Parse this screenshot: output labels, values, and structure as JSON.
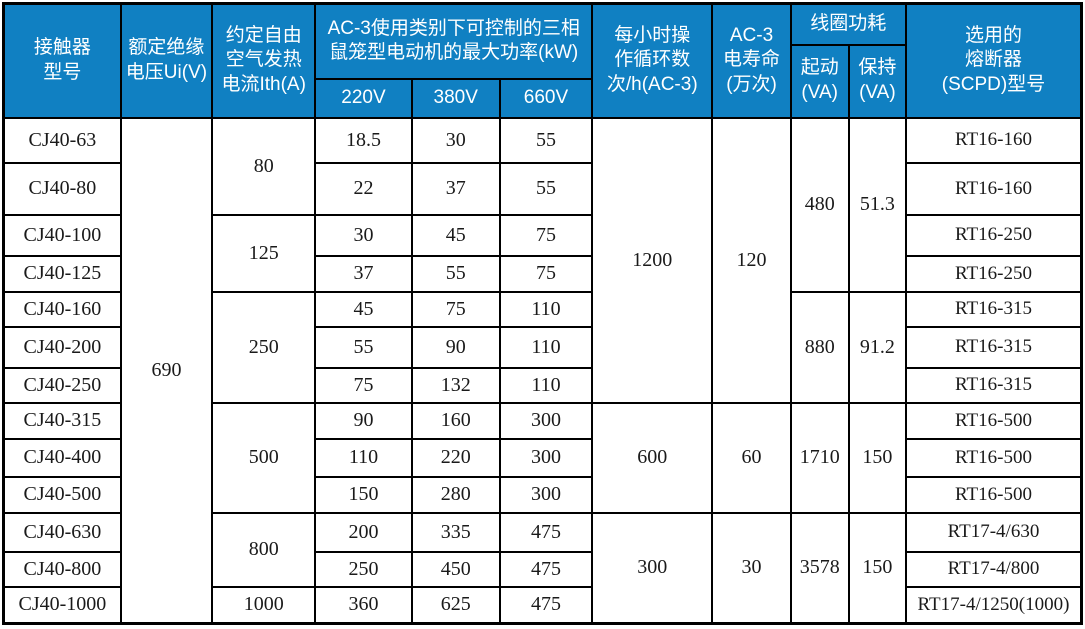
{
  "header": {
    "model": "接触器\n型号",
    "insulation": "额定绝缘\n电压Ui(V)",
    "thermal": "约定自由\n空气发热\n电流Ith(A)",
    "power_group": "AC-3使用类别下可控制的三相\n鼠笼型电动机的最大功率(kW)",
    "v220": "220V",
    "v380": "380V",
    "v660": "660V",
    "ops": "每小时操\n作循环数\n次/h(AC-3)",
    "life": "AC-3\n电寿命\n(万次)",
    "coil_group": "线圈功耗",
    "coil_start": "起动\n(VA)",
    "coil_hold": "保持\n(VA)",
    "fuse": "选用的\n熔断器\n(SCPD)型号"
  },
  "colors": {
    "header_bg": "#1080C2",
    "header_text": "#ffffff",
    "body_text": "#1a1a1a",
    "border": "#000000"
  },
  "rows": [
    {
      "model": "CJ40-63",
      "p220": "18.5",
      "p380": "30",
      "p660": "55",
      "fuse": "RT16-160"
    },
    {
      "model": "CJ40-80",
      "p220": "22",
      "p380": "37",
      "p660": "55",
      "fuse": "RT16-160"
    },
    {
      "model": "CJ40-100",
      "p220": "30",
      "p380": "45",
      "p660": "75",
      "fuse": "RT16-250"
    },
    {
      "model": "CJ40-125",
      "p220": "37",
      "p380": "55",
      "p660": "75",
      "fuse": "RT16-250"
    },
    {
      "model": "CJ40-160",
      "p220": "45",
      "p380": "75",
      "p660": "110",
      "fuse": "RT16-315"
    },
    {
      "model": "CJ40-200",
      "p220": "55",
      "p380": "90",
      "p660": "110",
      "fuse": "RT16-315"
    },
    {
      "model": "CJ40-250",
      "p220": "75",
      "p380": "132",
      "p660": "110",
      "fuse": "RT16-315"
    },
    {
      "model": "CJ40-315",
      "p220": "90",
      "p380": "160",
      "p660": "300",
      "fuse": "RT16-500"
    },
    {
      "model": "CJ40-400",
      "p220": "110",
      "p380": "220",
      "p660": "300",
      "fuse": "RT16-500"
    },
    {
      "model": "CJ40-500",
      "p220": "150",
      "p380": "280",
      "p660": "300",
      "fuse": "RT16-500"
    },
    {
      "model": "CJ40-630",
      "p220": "200",
      "p380": "335",
      "p660": "475",
      "fuse": "RT17-4/630"
    },
    {
      "model": "CJ40-800",
      "p220": "250",
      "p380": "450",
      "p660": "475",
      "fuse": "RT17-4/800"
    },
    {
      "model": "CJ40-1000",
      "p220": "360",
      "p380": "625",
      "p660": "475",
      "fuse": "RT17-4/1250(1000)"
    }
  ],
  "merged_columns": {
    "ui": [
      {
        "start": 0,
        "span": 13,
        "value": "690"
      }
    ],
    "ith": [
      {
        "start": 0,
        "span": 2,
        "value": "80"
      },
      {
        "start": 2,
        "span": 2,
        "value": "125"
      },
      {
        "start": 4,
        "span": 3,
        "value": "250"
      },
      {
        "start": 7,
        "span": 3,
        "value": "500"
      },
      {
        "start": 10,
        "span": 2,
        "value": "800"
      },
      {
        "start": 12,
        "span": 1,
        "value": "1000"
      }
    ],
    "ops": [
      {
        "start": 0,
        "span": 7,
        "value": "1200"
      },
      {
        "start": 7,
        "span": 3,
        "value": "600"
      },
      {
        "start": 10,
        "span": 3,
        "value": "300"
      }
    ],
    "life": [
      {
        "start": 0,
        "span": 7,
        "value": "120"
      },
      {
        "start": 7,
        "span": 3,
        "value": "60"
      },
      {
        "start": 10,
        "span": 3,
        "value": "30"
      }
    ],
    "coil_start": [
      {
        "start": 0,
        "span": 4,
        "value": "480"
      },
      {
        "start": 4,
        "span": 3,
        "value": "880"
      },
      {
        "start": 7,
        "span": 3,
        "value": "1710"
      },
      {
        "start": 10,
        "span": 3,
        "value": "3578"
      }
    ],
    "coil_hold": [
      {
        "start": 0,
        "span": 4,
        "value": "51.3"
      },
      {
        "start": 4,
        "span": 3,
        "value": "91.2"
      },
      {
        "start": 7,
        "span": 3,
        "value": "150"
      },
      {
        "start": 10,
        "span": 3,
        "value": "150"
      }
    ]
  }
}
